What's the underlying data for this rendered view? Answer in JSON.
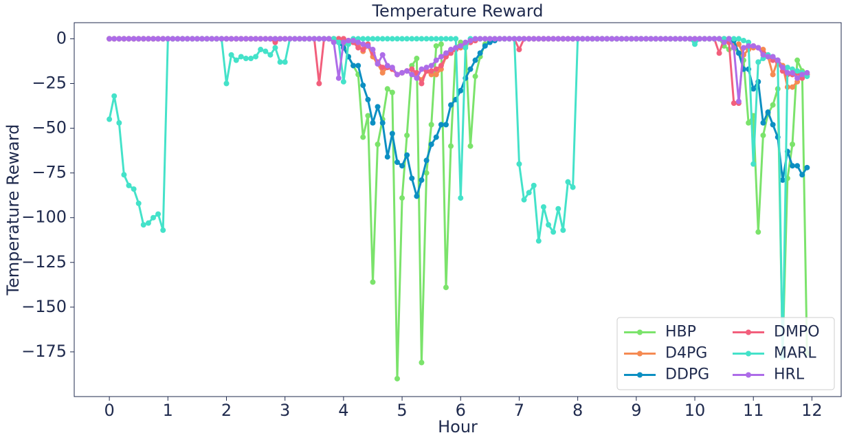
{
  "chart_data": {
    "type": "line",
    "title": "Temperature Reward",
    "x_label": "Hour",
    "y_label": "Temperature Reward",
    "x": [
      0,
      0.083,
      0.167,
      0.25,
      0.333,
      0.417,
      0.5,
      0.583,
      0.667,
      0.75,
      0.833,
      0.917,
      1,
      1.083,
      1.167,
      1.25,
      1.333,
      1.417,
      1.5,
      1.583,
      1.667,
      1.75,
      1.833,
      1.917,
      2,
      2.083,
      2.167,
      2.25,
      2.333,
      2.417,
      2.5,
      2.583,
      2.667,
      2.75,
      2.833,
      2.917,
      3,
      3.083,
      3.167,
      3.25,
      3.333,
      3.417,
      3.5,
      3.583,
      3.667,
      3.75,
      3.833,
      3.917,
      4,
      4.083,
      4.167,
      4.25,
      4.333,
      4.417,
      4.5,
      4.583,
      4.667,
      4.75,
      4.833,
      4.917,
      5,
      5.083,
      5.167,
      5.25,
      5.333,
      5.417,
      5.5,
      5.583,
      5.667,
      5.75,
      5.833,
      5.917,
      6,
      6.083,
      6.167,
      6.25,
      6.333,
      6.417,
      6.5,
      6.583,
      6.667,
      6.75,
      6.833,
      6.917,
      7,
      7.083,
      7.167,
      7.25,
      7.333,
      7.417,
      7.5,
      7.583,
      7.667,
      7.75,
      7.833,
      7.917,
      8,
      8.083,
      8.167,
      8.25,
      8.333,
      8.417,
      8.5,
      8.583,
      8.667,
      8.75,
      8.833,
      8.917,
      9,
      9.083,
      9.167,
      9.25,
      9.333,
      9.417,
      9.5,
      9.583,
      9.667,
      9.75,
      9.833,
      9.917,
      10,
      10.083,
      10.167,
      10.25,
      10.333,
      10.417,
      10.5,
      10.583,
      10.667,
      10.75,
      10.833,
      10.917,
      11,
      11.083,
      11.167,
      11.25,
      11.333,
      11.417,
      11.5,
      11.583,
      11.667,
      11.75,
      11.833,
      11.917
    ],
    "series": [
      {
        "name": "HBP",
        "color": "#7be36b",
        "values": [
          0,
          0,
          0,
          0,
          0,
          0,
          0,
          0,
          0,
          0,
          0,
          0,
          0,
          0,
          0,
          0,
          0,
          0,
          0,
          0,
          0,
          0,
          0,
          0,
          0,
          0,
          0,
          0,
          0,
          0,
          0,
          0,
          0,
          0,
          0,
          0,
          0,
          0,
          0,
          0,
          0,
          0,
          0,
          0,
          0,
          0,
          0,
          0,
          -3,
          -10,
          -15,
          -20,
          -55,
          -43,
          -136,
          -59,
          -45,
          -28,
          -30,
          -190,
          -89,
          -54,
          -15,
          -11,
          -181,
          -75,
          -48,
          -4,
          -3,
          -139,
          -60,
          -5,
          -2,
          -3,
          -60,
          -21,
          -10,
          -3,
          -1,
          0,
          0,
          0,
          0,
          0,
          0,
          0,
          0,
          0,
          0,
          0,
          0,
          0,
          0,
          0,
          0,
          0,
          0,
          0,
          0,
          0,
          0,
          0,
          0,
          0,
          0,
          0,
          0,
          0,
          0,
          0,
          0,
          0,
          0,
          0,
          0,
          0,
          0,
          0,
          0,
          0,
          0,
          0,
          0,
          0,
          0,
          0,
          -4,
          -6,
          -5,
          -8,
          -12,
          -47,
          -43,
          -108,
          -54,
          -42,
          -37,
          -28,
          -175,
          -78,
          -59,
          -12,
          -18,
          -176
        ]
      },
      {
        "name": "D4PG",
        "color": "#f58a52",
        "values": [
          0,
          0,
          0,
          0,
          0,
          0,
          0,
          0,
          0,
          0,
          0,
          0,
          0,
          0,
          0,
          0,
          0,
          0,
          0,
          0,
          0,
          0,
          0,
          0,
          0,
          0,
          0,
          0,
          0,
          0,
          0,
          0,
          0,
          0,
          0,
          0,
          0,
          0,
          0,
          0,
          0,
          0,
          0,
          0,
          0,
          0,
          0,
          0,
          0,
          -1,
          -2,
          -3,
          -7,
          -4,
          -10,
          -14,
          -19,
          -16,
          -17,
          -20,
          -19,
          -18,
          -17,
          -20,
          -23,
          -18,
          -20,
          -20,
          -17,
          -10,
          -8,
          -6,
          -5,
          -4,
          -2,
          -1,
          0,
          0,
          0,
          0,
          0,
          0,
          0,
          0,
          0,
          0,
          0,
          0,
          0,
          0,
          0,
          0,
          0,
          0,
          0,
          0,
          0,
          0,
          0,
          0,
          0,
          0,
          0,
          0,
          0,
          0,
          0,
          0,
          0,
          0,
          0,
          0,
          0,
          0,
          0,
          0,
          0,
          0,
          0,
          0,
          0,
          0,
          0,
          0,
          0,
          0,
          0,
          0,
          -4,
          -3,
          -9,
          -6,
          -5,
          -5,
          -6,
          -10,
          -20,
          -12,
          -15,
          -27,
          -27,
          -24,
          -20,
          -20
        ]
      },
      {
        "name": "DDPG",
        "color": "#0c8fc2",
        "values": [
          0,
          0,
          0,
          0,
          0,
          0,
          0,
          0,
          0,
          0,
          0,
          0,
          0,
          0,
          0,
          0,
          0,
          0,
          0,
          0,
          0,
          0,
          0,
          0,
          0,
          0,
          0,
          0,
          0,
          0,
          0,
          0,
          0,
          0,
          0,
          0,
          0,
          0,
          0,
          0,
          0,
          0,
          0,
          0,
          0,
          0,
          0,
          -2,
          -5,
          -10,
          -15,
          -15,
          -26,
          -34,
          -47,
          -38,
          -47,
          -66,
          -53,
          -69,
          -71,
          -65,
          -78,
          -88,
          -79,
          -68,
          -59,
          -55,
          -48,
          -48,
          -37,
          -34,
          -29,
          -22,
          -17,
          -12,
          -8,
          -4,
          -2,
          -1,
          0,
          0,
          0,
          0,
          0,
          0,
          0,
          0,
          0,
          0,
          0,
          0,
          0,
          0,
          0,
          0,
          0,
          0,
          0,
          0,
          0,
          0,
          0,
          0,
          0,
          0,
          0,
          0,
          0,
          0,
          0,
          0,
          0,
          0,
          0,
          0,
          0,
          0,
          0,
          0,
          0,
          0,
          0,
          0,
          0,
          0,
          0,
          0,
          -1,
          -8,
          -17,
          -17,
          -28,
          -24,
          -47,
          -41,
          -48,
          -55,
          -79,
          -63,
          -71,
          -71,
          -76,
          -72
        ]
      },
      {
        "name": "DMPO",
        "color": "#f25f7c",
        "values": [
          0,
          0,
          0,
          0,
          0,
          0,
          0,
          0,
          0,
          0,
          0,
          0,
          0,
          0,
          0,
          0,
          0,
          0,
          0,
          0,
          0,
          0,
          0,
          0,
          0,
          0,
          0,
          0,
          0,
          0,
          0,
          0,
          0,
          0,
          -2,
          0,
          0,
          0,
          0,
          0,
          0,
          0,
          0,
          -25,
          0,
          0,
          0,
          0,
          0,
          -1,
          -2,
          -5,
          -6,
          -3,
          -8,
          -13,
          -16,
          -16,
          -17,
          -20,
          -19,
          -18,
          -17,
          -19,
          -25,
          -18,
          -18,
          -17,
          -15,
          -10,
          -8,
          -6,
          -4,
          -3,
          -2,
          -1,
          0,
          0,
          0,
          0,
          0,
          0,
          0,
          0,
          -6,
          0,
          0,
          0,
          0,
          0,
          0,
          0,
          0,
          0,
          0,
          0,
          0,
          0,
          0,
          0,
          0,
          0,
          0,
          0,
          0,
          0,
          0,
          0,
          0,
          0,
          0,
          0,
          0,
          0,
          0,
          0,
          0,
          0,
          0,
          0,
          0,
          0,
          0,
          0,
          0,
          -8,
          0,
          -2,
          -36,
          -36,
          -5,
          -4,
          -4,
          -5,
          -8,
          -10,
          -12,
          -13,
          -18,
          -20,
          -20,
          -19,
          -22,
          -20
        ]
      },
      {
        "name": "MARL",
        "color": "#44e2c9",
        "values": [
          -45,
          -32,
          -47,
          -76,
          -82,
          -84,
          -92,
          -104,
          -103,
          -100,
          -98,
          -107,
          0,
          0,
          0,
          0,
          0,
          0,
          0,
          0,
          0,
          0,
          0,
          0,
          -25,
          -9,
          -12,
          -10,
          -11,
          -11,
          -10,
          -6,
          -7,
          -9,
          -5,
          -13,
          -13,
          0,
          0,
          0,
          0,
          0,
          0,
          0,
          0,
          0,
          0,
          -2,
          -24,
          -3,
          0,
          0,
          0,
          0,
          0,
          0,
          0,
          0,
          0,
          0,
          0,
          0,
          0,
          0,
          0,
          0,
          0,
          0,
          0,
          0,
          0,
          0,
          -89,
          -5,
          0,
          0,
          0,
          0,
          0,
          0,
          0,
          0,
          0,
          0,
          -70,
          -90,
          -86,
          -82,
          -113,
          -94,
          -104,
          -108,
          -95,
          -107,
          -80,
          -83,
          0,
          0,
          0,
          0,
          0,
          0,
          0,
          0,
          0,
          0,
          0,
          0,
          0,
          0,
          0,
          0,
          0,
          0,
          0,
          0,
          0,
          0,
          0,
          0,
          -3,
          0,
          0,
          0,
          0,
          0,
          0,
          0,
          0,
          0,
          -1,
          -2,
          -70,
          -13,
          -11,
          -9,
          -10,
          -12,
          -178,
          -16,
          -17,
          -18,
          -19,
          -21
        ]
      },
      {
        "name": "HRL",
        "color": "#ad6ce8",
        "values": [
          0,
          0,
          0,
          0,
          0,
          0,
          0,
          0,
          0,
          0,
          0,
          0,
          0,
          0,
          0,
          0,
          0,
          0,
          0,
          0,
          0,
          0,
          0,
          0,
          0,
          0,
          0,
          0,
          0,
          0,
          0,
          0,
          0,
          0,
          0,
          0,
          0,
          0,
          0,
          0,
          0,
          0,
          0,
          0,
          0,
          0,
          -2,
          -22,
          -2,
          -1,
          -1,
          -2,
          -3,
          -4,
          -6,
          -14,
          -9,
          -15,
          -16,
          -20,
          -19,
          -18,
          -20,
          -22,
          -17,
          -16,
          -15,
          -12,
          -10,
          -8,
          -6,
          -5,
          -4,
          -2,
          -1,
          0,
          0,
          0,
          0,
          0,
          0,
          0,
          0,
          0,
          0,
          0,
          0,
          0,
          0,
          0,
          0,
          0,
          0,
          0,
          0,
          0,
          0,
          0,
          0,
          0,
          0,
          0,
          0,
          0,
          0,
          0,
          0,
          0,
          0,
          0,
          0,
          0,
          0,
          0,
          0,
          0,
          0,
          0,
          0,
          0,
          0,
          0,
          0,
          0,
          0,
          0,
          -2,
          0,
          -5,
          -35,
          -5,
          -4,
          -4,
          -5,
          -9,
          -10,
          -10,
          -12,
          -16,
          -19,
          -19,
          -22,
          -20,
          -19
        ]
      }
    ],
    "xlim": [
      -0.6,
      12.5
    ],
    "ylim": [
      -200,
      9
    ],
    "xticks": [
      0,
      1,
      2,
      3,
      4,
      5,
      6,
      7,
      8,
      9,
      10,
      11,
      12
    ],
    "yticks": [
      0,
      {
        "value": -25,
        "label": "−25"
      },
      {
        "value": -50,
        "label": "−50"
      },
      {
        "value": -75,
        "label": "−75"
      },
      {
        "value": -100,
        "label": "−100"
      },
      {
        "value": -125,
        "label": "−125"
      },
      {
        "value": -150,
        "label": "−150"
      },
      {
        "value": -175,
        "label": "−175"
      }
    ],
    "legend_position": "lower right",
    "legend_columns": 2,
    "grid": false
  }
}
